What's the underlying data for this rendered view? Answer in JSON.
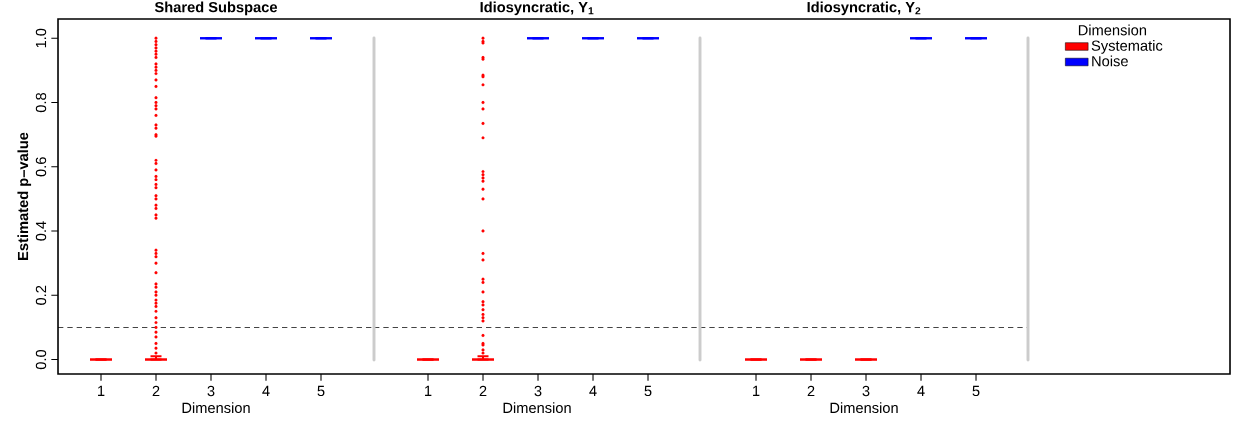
{
  "chart_data": [
    {
      "type": "box",
      "title": "Shared Subspace",
      "xlabel": "Dimension",
      "ylabel": "Estimated p–value",
      "categories": [
        "1",
        "2",
        "3",
        "4",
        "5"
      ],
      "series": [
        {
          "color": "#ff0000",
          "boxes": [
            {
              "low": 0,
              "q1": 0,
              "median": 0,
              "q3": 0,
              "high": 0
            },
            {
              "low": 0,
              "q1": 0,
              "median": 0,
              "q3": 0,
              "high": 0.01,
              "outliers": [
                1.0,
                0.99,
                0.98,
                0.97,
                0.96,
                0.95,
                0.94,
                0.92,
                0.91,
                0.9,
                0.89,
                0.87,
                0.85,
                0.815,
                0.8,
                0.79,
                0.78,
                0.76,
                0.73,
                0.72,
                0.7,
                0.695,
                0.62,
                0.61,
                0.59,
                0.57,
                0.56,
                0.545,
                0.535,
                0.51,
                0.5,
                0.48,
                0.47,
                0.45,
                0.44,
                0.34,
                0.33,
                0.32,
                0.3,
                0.27,
                0.235,
                0.225,
                0.21,
                0.2,
                0.185,
                0.175,
                0.165,
                0.15,
                0.13,
                0.115,
                0.1,
                0.085,
                0.07,
                0.05,
                0.035,
                0.02
              ]
            },
            null,
            null,
            null
          ]
        },
        {
          "color": "#0000ff",
          "boxes": [
            null,
            null,
            {
              "low": 1,
              "q1": 1,
              "median": 1,
              "q3": 1,
              "high": 1
            },
            {
              "low": 1,
              "q1": 1,
              "median": 1,
              "q3": 1,
              "high": 1
            },
            {
              "low": 1,
              "q1": 1,
              "median": 1,
              "q3": 1,
              "high": 1
            }
          ]
        }
      ],
      "ylim": [
        -0.045,
        1.06
      ],
      "yticks": [
        {
          "value": 0,
          "label": "0.0"
        },
        {
          "value": 0.2,
          "label": "0.2"
        },
        {
          "value": 0.4,
          "label": "0.4"
        },
        {
          "value": 0.6,
          "label": "0.6"
        },
        {
          "value": 0.8,
          "label": "0.8"
        },
        {
          "value": 1,
          "label": "1.0"
        }
      ],
      "ref_lines": [
        {
          "axis": "y",
          "value": 0.1,
          "color": "#444444",
          "line_style": "dashed"
        }
      ]
    },
    {
      "type": "box",
      "title": "Idiosyncratic, Y$_{1}$",
      "xlabel": "Dimension",
      "categories": [
        "1",
        "2",
        "3",
        "4",
        "5"
      ],
      "series": [
        {
          "color": "#ff0000",
          "boxes": [
            {
              "low": 0,
              "q1": 0,
              "median": 0,
              "q3": 0,
              "high": 0
            },
            {
              "low": 0,
              "q1": 0,
              "median": 0,
              "q3": 0,
              "high": 0.01,
              "outliers": [
                1.0,
                0.99,
                0.985,
                0.94,
                0.935,
                0.885,
                0.88,
                0.855,
                0.8,
                0.78,
                0.735,
                0.69,
                0.585,
                0.575,
                0.565,
                0.555,
                0.53,
                0.5,
                0.4,
                0.33,
                0.31,
                0.25,
                0.24,
                0.21,
                0.18,
                0.17,
                0.155,
                0.14,
                0.13,
                0.12,
                0.075,
                0.05,
                0.045,
                0.03,
                0.02
              ]
            },
            null,
            null,
            null
          ]
        },
        {
          "color": "#0000ff",
          "boxes": [
            null,
            null,
            {
              "low": 1,
              "q1": 1,
              "median": 1,
              "q3": 1,
              "high": 1
            },
            {
              "low": 1,
              "q1": 1,
              "median": 1,
              "q3": 1,
              "high": 1
            },
            {
              "low": 1,
              "q1": 1,
              "median": 1,
              "q3": 1,
              "high": 1
            }
          ]
        }
      ],
      "ylim": [
        -0.045,
        1.06
      ],
      "tick_labels": "x",
      "ref_lines": [
        {
          "axis": "y",
          "value": 0.1,
          "color": "#444444",
          "line_style": "dashed"
        }
      ]
    },
    {
      "type": "box",
      "title": "Idiosyncratic, Y$_{2}$",
      "xlabel": "Dimension",
      "categories": [
        "1",
        "2",
        "3",
        "4",
        "5"
      ],
      "series": [
        {
          "name": "Systematic",
          "color": "#ff0000",
          "boxes": [
            {
              "low": 0,
              "q1": 0,
              "median": 0,
              "q3": 0,
              "high": 0
            },
            {
              "low": 0,
              "q1": 0,
              "median": 0,
              "q3": 0,
              "high": 0
            },
            {
              "low": 0,
              "q1": 0,
              "median": 0,
              "q3": 0,
              "high": 0
            },
            null,
            null
          ]
        },
        {
          "name": "Noise",
          "color": "#0000ff",
          "boxes": [
            null,
            null,
            null,
            {
              "low": 1,
              "q1": 1,
              "median": 1,
              "q3": 1,
              "high": 1
            },
            {
              "low": 1,
              "q1": 1,
              "median": 1,
              "q3": 1,
              "high": 1
            }
          ]
        }
      ],
      "ylim": [
        -0.045,
        1.06
      ],
      "tick_labels": "x",
      "legend": "right",
      "legend_title": "Dimension",
      "ref_lines": [
        {
          "axis": "y",
          "value": 0.1,
          "color": "#444444",
          "line_style": "dashed"
        }
      ]
    }
  ]
}
